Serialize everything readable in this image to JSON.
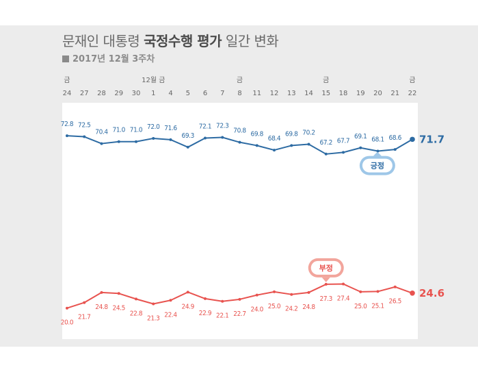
{
  "header": {
    "title_prefix": "문재인 대통령",
    "title_bold": "국정수행 평가",
    "title_suffix": "일간 변화",
    "subtitle": "2017년 12월 3주차"
  },
  "colors": {
    "positive": "#2d6ba3",
    "negative": "#e8534f",
    "positive_badge": "#9ec7e8",
    "negative_badge": "#f2a59c",
    "plot_bg": "#ffffff",
    "panel_bg": "#ececec"
  },
  "chart_data": {
    "type": "line",
    "x": [
      "24",
      "27",
      "28",
      "29",
      "30",
      "1",
      "4",
      "5",
      "6",
      "7",
      "8",
      "11",
      "12",
      "13",
      "14",
      "15",
      "18",
      "19",
      "20",
      "21",
      "22"
    ],
    "x_top_labels": [
      {
        "index": 0,
        "text": "금"
      },
      {
        "index": 5,
        "text": "12월 금"
      },
      {
        "index": 10,
        "text": "금"
      },
      {
        "index": 15,
        "text": "금"
      },
      {
        "index": 20,
        "text": "금"
      }
    ],
    "series": [
      {
        "name": "긍정",
        "values": [
          72.8,
          72.5,
          70.4,
          71.0,
          71.0,
          72.0,
          71.6,
          69.3,
          72.1,
          72.3,
          70.8,
          69.8,
          68.4,
          69.8,
          70.2,
          67.2,
          67.7,
          69.1,
          68.1,
          68.6,
          71.7
        ],
        "last_value_label": "71.7"
      },
      {
        "name": "부정",
        "values": [
          20.0,
          21.7,
          24.8,
          24.5,
          22.8,
          21.3,
          22.4,
          24.9,
          22.9,
          22.1,
          22.7,
          24.0,
          25.0,
          24.2,
          24.8,
          27.3,
          27.4,
          25.0,
          25.1,
          26.5,
          24.6
        ],
        "last_value_label": "24.6"
      }
    ],
    "ylim": [
      0,
      85
    ],
    "grid": false,
    "legend": "inline-badges"
  }
}
